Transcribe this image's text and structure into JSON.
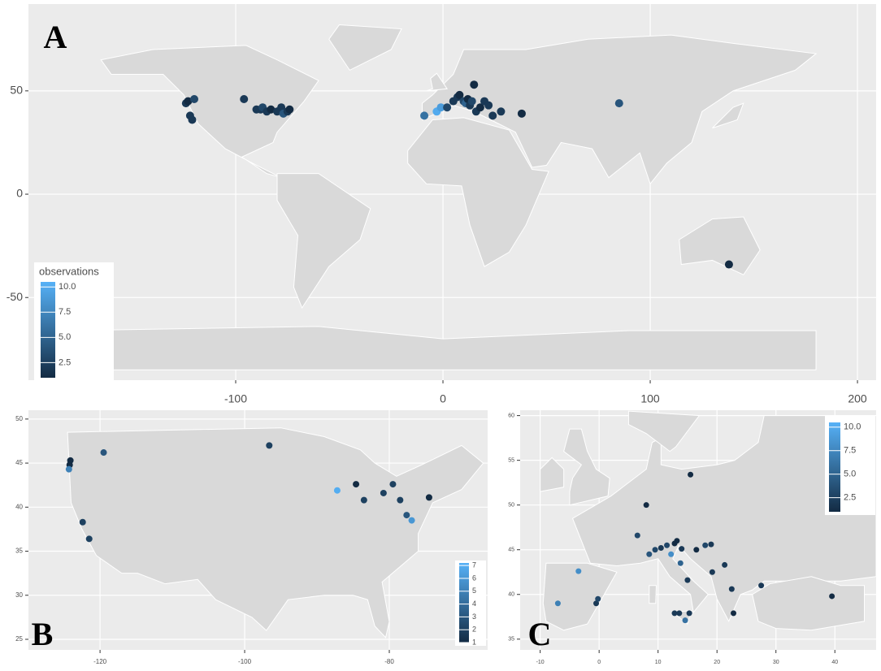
{
  "chart_data": [
    {
      "type": "scatter",
      "title": "A",
      "x": [
        -124,
        -123,
        -122,
        -121,
        -120,
        -96,
        -90,
        -88,
        -87,
        -85,
        -83,
        -80,
        -78,
        -77,
        -75,
        -74,
        -9,
        -3,
        -1,
        2,
        5,
        7,
        8,
        10,
        11,
        12,
        13,
        14,
        15,
        16,
        18,
        20,
        22,
        24,
        28,
        38,
        85,
        138
      ],
      "y": [
        44,
        45,
        38,
        36,
        46,
        46,
        41,
        41,
        42,
        40,
        41,
        40,
        42,
        39,
        40,
        41,
        38,
        40,
        42,
        42,
        45,
        47,
        48,
        45,
        44,
        46,
        43,
        45,
        53,
        40,
        42,
        45,
        43,
        38,
        40,
        39,
        44,
        -34
      ],
      "values": [
        2,
        1,
        2,
        2,
        3,
        2,
        2,
        2,
        3,
        2,
        1,
        2,
        2,
        4,
        2,
        1,
        6,
        10,
        9,
        3,
        2,
        2,
        1,
        3,
        5,
        1,
        2,
        3,
        1,
        2,
        1,
        2,
        2,
        2,
        2,
        1,
        4,
        1
      ],
      "xlim": [
        -200,
        209
      ],
      "ylim": [
        -90,
        92
      ],
      "xticks": [
        -100,
        0,
        100,
        200
      ],
      "yticks": [
        -50,
        0,
        50
      ],
      "grid": true,
      "colorbar": {
        "title": "observations",
        "clim": [
          1,
          10.5
        ],
        "colors": [
          "#132b43",
          "#56b1f7"
        ],
        "ticks": [
          2.5,
          {
            "value": 5,
            "label": "5.0"
          },
          7.5,
          {
            "value": 10,
            "label": "10.0"
          }
        ]
      }
    },
    {
      "type": "scatter",
      "title": "B",
      "x": [
        -124.1,
        -124.2,
        -124.3,
        -122.4,
        -121.5,
        -119.5,
        -96.6,
        -87.2,
        -84.6,
        -83.5,
        -80.8,
        -79.5,
        -78.5,
        -77.6,
        -76.9,
        -74.5
      ],
      "y": [
        45.3,
        44.8,
        44.3,
        38.3,
        36.4,
        46.2,
        47,
        41.9,
        42.6,
        40.8,
        41.6,
        42.6,
        40.8,
        39.1,
        38.5,
        41.1
      ],
      "values": [
        1,
        1,
        5,
        2,
        2,
        3,
        2,
        7,
        1,
        2,
        2,
        2,
        2,
        3,
        6,
        1
      ],
      "xlim": [
        -129.9,
        -66.4
      ],
      "ylim": [
        23.8,
        51
      ],
      "xticks": [
        -120,
        -100,
        -80
      ],
      "yticks": [
        25,
        30,
        35,
        40,
        45,
        50
      ],
      "grid": true,
      "colorbar": {
        "clim": [
          1,
          7.2
        ],
        "colors": [
          "#132b43",
          "#56b1f7"
        ],
        "ticks": [
          1,
          2,
          3,
          4,
          5,
          6,
          7
        ]
      }
    },
    {
      "type": "scatter",
      "title": "C",
      "x": [
        -7,
        -3.5,
        -0.5,
        -0.2,
        8,
        6.5,
        8.5,
        9.5,
        10.5,
        11.5,
        12.2,
        12.8,
        13.2,
        13.8,
        14,
        15.5,
        15,
        16.5,
        18,
        19.2,
        19,
        21.3,
        22.5,
        22.8,
        27.5,
        39.5,
        12.8,
        13.6,
        14.6,
        15.3
      ],
      "y": [
        39,
        42.6,
        39,
        39.5,
        50,
        46.6,
        44.5,
        45,
        45.2,
        45.5,
        44.5,
        45.7,
        46,
        43.5,
        45.1,
        53.4,
        41.6,
        45,
        45.5,
        42.5,
        45.6,
        43.3,
        40.6,
        37.9,
        41,
        39.8,
        37.9,
        37.9,
        37.1,
        37.9
      ],
      "values": [
        7,
        8,
        2,
        3,
        1,
        3,
        4,
        3,
        2,
        3,
        8,
        1,
        1,
        5,
        2,
        1,
        2,
        1,
        3,
        2,
        2,
        2,
        2,
        1,
        2,
        1,
        2,
        2,
        6,
        2
      ],
      "xlim": [
        -13.4,
        47
      ],
      "ylim": [
        33.8,
        60.6
      ],
      "xticks": [
        -10,
        0,
        10,
        20,
        30,
        40
      ],
      "yticks": [
        35,
        40,
        45,
        50,
        55,
        60
      ],
      "grid": true,
      "colorbar": {
        "clim": [
          1,
          10.5
        ],
        "colors": [
          "#132b43",
          "#56b1f7"
        ],
        "ticks": [
          2.5,
          {
            "value": 5,
            "label": "5.0"
          },
          7.5,
          {
            "value": 10,
            "label": "10.0"
          }
        ]
      }
    }
  ]
}
